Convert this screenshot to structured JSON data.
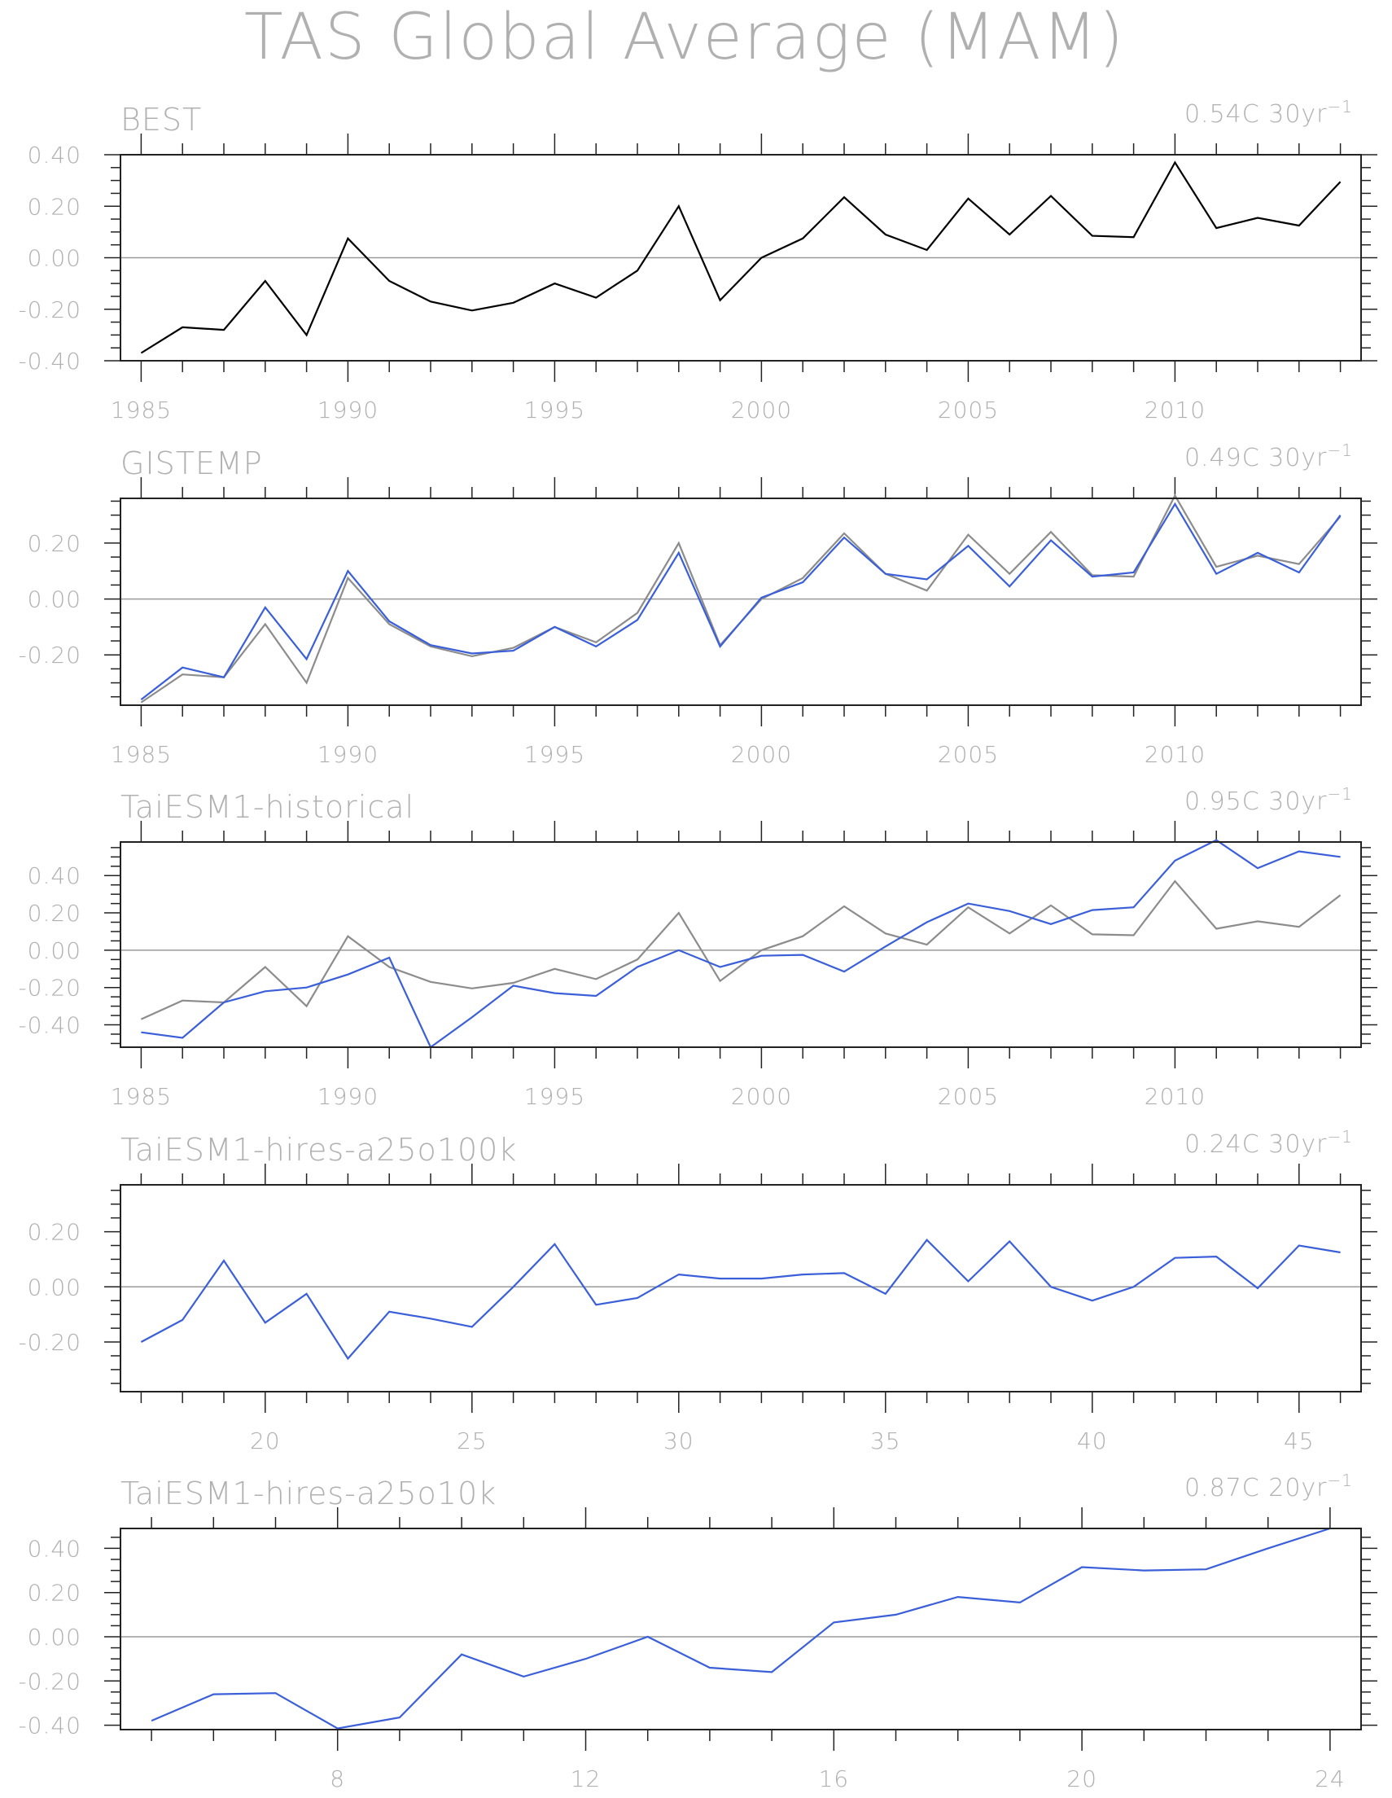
{
  "figure_title": "TAS Global Average (MAM)",
  "colors": {
    "reference": "#000000",
    "reference_overlay": "#8c8c8c",
    "model": "#3a5fd9",
    "zero_line": "#9a9a9a",
    "frame": "#222222",
    "text": "#b0b0b0"
  },
  "chart_data": [
    {
      "type": "line",
      "title": "BEST",
      "trend_label": "0.54C 30yr",
      "trend_exp": "−1",
      "ylim": [
        -0.4,
        0.4
      ],
      "yticks": [
        -0.4,
        -0.2,
        0.0,
        0.2,
        0.4
      ],
      "ytick_labels": [
        "-0.40",
        "-0.20",
        "0.00",
        "0.20",
        "0.40"
      ],
      "xlim": [
        1984.5,
        2014.5
      ],
      "xticks": [
        1985,
        1990,
        1995,
        2000,
        2005,
        2010
      ],
      "xtick_labels": [
        "1985",
        "1990",
        "1995",
        "2000",
        "2005",
        "2010"
      ],
      "x": [
        1985,
        1986,
        1987,
        1988,
        1989,
        1990,
        1991,
        1992,
        1993,
        1994,
        1995,
        1996,
        1997,
        1998,
        1999,
        2000,
        2001,
        2002,
        2003,
        2004,
        2005,
        2006,
        2007,
        2008,
        2009,
        2010,
        2011,
        2012,
        2013,
        2014
      ],
      "series": [
        {
          "role": "reference",
          "values": [
            -0.37,
            -0.27,
            -0.28,
            -0.09,
            -0.3,
            0.075,
            -0.09,
            -0.17,
            -0.205,
            -0.175,
            -0.1,
            -0.155,
            -0.05,
            0.2,
            -0.165,
            0.0,
            0.075,
            0.235,
            0.09,
            0.03,
            0.23,
            0.09,
            0.24,
            0.085,
            0.08,
            0.37,
            0.115,
            0.155,
            0.125,
            0.295
          ]
        }
      ]
    },
    {
      "type": "line",
      "title": "GISTEMP",
      "trend_label": "0.49C 30yr",
      "trend_exp": "−1",
      "ylim": [
        -0.38,
        0.36
      ],
      "yticks": [
        -0.2,
        0.0,
        0.2
      ],
      "ytick_labels": [
        "-0.20",
        "0.00",
        "0.20"
      ],
      "xlim": [
        1984.5,
        2014.5
      ],
      "xticks": [
        1985,
        1990,
        1995,
        2000,
        2005,
        2010
      ],
      "xtick_labels": [
        "1985",
        "1990",
        "1995",
        "2000",
        "2005",
        "2010"
      ],
      "x": [
        1985,
        1986,
        1987,
        1988,
        1989,
        1990,
        1991,
        1992,
        1993,
        1994,
        1995,
        1996,
        1997,
        1998,
        1999,
        2000,
        2001,
        2002,
        2003,
        2004,
        2005,
        2006,
        2007,
        2008,
        2009,
        2010,
        2011,
        2012,
        2013,
        2014
      ],
      "series": [
        {
          "role": "reference_overlay",
          "values": [
            -0.37,
            -0.27,
            -0.28,
            -0.09,
            -0.3,
            0.075,
            -0.09,
            -0.17,
            -0.205,
            -0.175,
            -0.1,
            -0.155,
            -0.05,
            0.2,
            -0.165,
            0.0,
            0.075,
            0.235,
            0.09,
            0.03,
            0.23,
            0.09,
            0.24,
            0.085,
            0.08,
            0.37,
            0.115,
            0.155,
            0.125,
            0.295
          ]
        },
        {
          "role": "model",
          "values": [
            -0.36,
            -0.245,
            -0.28,
            -0.03,
            -0.215,
            0.1,
            -0.08,
            -0.165,
            -0.195,
            -0.185,
            -0.1,
            -0.17,
            -0.075,
            0.165,
            -0.17,
            0.005,
            0.06,
            0.22,
            0.09,
            0.07,
            0.19,
            0.045,
            0.21,
            0.08,
            0.095,
            0.34,
            0.09,
            0.165,
            0.095,
            0.3
          ]
        }
      ]
    },
    {
      "type": "line",
      "title": "TaiESM1-historical",
      "trend_label": "0.95C 30yr",
      "trend_exp": "−1",
      "ylim": [
        -0.52,
        0.58
      ],
      "yticks": [
        -0.4,
        -0.2,
        0.0,
        0.2,
        0.4
      ],
      "ytick_labels": [
        "-0.40",
        "-0.20",
        "0.00",
        "0.20",
        "0.40"
      ],
      "xlim": [
        1984.5,
        2014.5
      ],
      "xticks": [
        1985,
        1990,
        1995,
        2000,
        2005,
        2010
      ],
      "xtick_labels": [
        "1985",
        "1990",
        "1995",
        "2000",
        "2005",
        "2010"
      ],
      "x": [
        1985,
        1986,
        1987,
        1988,
        1989,
        1990,
        1991,
        1992,
        1993,
        1994,
        1995,
        1996,
        1997,
        1998,
        1999,
        2000,
        2001,
        2002,
        2003,
        2004,
        2005,
        2006,
        2007,
        2008,
        2009,
        2010,
        2011,
        2012,
        2013,
        2014
      ],
      "series": [
        {
          "role": "reference_overlay",
          "values": [
            -0.37,
            -0.27,
            -0.28,
            -0.09,
            -0.3,
            0.075,
            -0.09,
            -0.17,
            -0.205,
            -0.175,
            -0.1,
            -0.155,
            -0.05,
            0.2,
            -0.165,
            0.0,
            0.075,
            0.235,
            0.09,
            0.03,
            0.23,
            0.09,
            0.24,
            0.085,
            0.08,
            0.37,
            0.115,
            0.155,
            0.125,
            0.295
          ]
        },
        {
          "role": "model",
          "values": [
            -0.44,
            -0.47,
            -0.28,
            -0.22,
            -0.2,
            -0.13,
            -0.04,
            -0.52,
            -0.36,
            -0.19,
            -0.23,
            -0.245,
            -0.09,
            0.0,
            -0.09,
            -0.03,
            -0.025,
            -0.115,
            0.02,
            0.15,
            0.25,
            0.21,
            0.14,
            0.215,
            0.23,
            0.48,
            0.59,
            0.44,
            0.53,
            0.5
          ]
        }
      ]
    },
    {
      "type": "line",
      "title": "TaiESM1-hires-a25o100k",
      "trend_label": "0.24C 30yr",
      "trend_exp": "−1",
      "ylim": [
        -0.38,
        0.37
      ],
      "yticks": [
        -0.2,
        0.0,
        0.2
      ],
      "ytick_labels": [
        "-0.20",
        "0.00",
        "0.20"
      ],
      "xlim": [
        16.5,
        46.5
      ],
      "xticks": [
        20,
        25,
        30,
        35,
        40,
        45
      ],
      "xtick_labels": [
        "20",
        "25",
        "30",
        "35",
        "40",
        "45"
      ],
      "x": [
        17,
        18,
        19,
        20,
        21,
        22,
        23,
        24,
        25,
        26,
        27,
        28,
        29,
        30,
        31,
        32,
        33,
        34,
        35,
        36,
        37,
        38,
        39,
        40,
        41,
        42,
        43,
        44,
        45,
        46
      ],
      "series": [
        {
          "role": "model",
          "values": [
            -0.2,
            -0.12,
            0.095,
            -0.13,
            -0.025,
            -0.26,
            -0.09,
            -0.115,
            -0.145,
            0.0,
            0.155,
            -0.065,
            -0.04,
            0.045,
            0.03,
            0.03,
            0.045,
            0.05,
            -0.025,
            0.17,
            0.02,
            0.165,
            0.0,
            -0.05,
            0.0,
            0.105,
            0.11,
            -0.005,
            0.15,
            0.125
          ]
        }
      ]
    },
    {
      "type": "line",
      "title": "TaiESM1-hires-a25o10k",
      "trend_label": "0.87C 20yr",
      "trend_exp": "−1",
      "ylim": [
        -0.42,
        0.49
      ],
      "yticks": [
        -0.4,
        -0.2,
        0.0,
        0.2,
        0.4
      ],
      "ytick_labels": [
        "-0.40",
        "-0.20",
        "0.00",
        "0.20",
        "0.40"
      ],
      "xlim": [
        4.5,
        24.5
      ],
      "xticks": [
        8,
        12,
        16,
        20,
        24
      ],
      "xtick_labels": [
        "8",
        "12",
        "16",
        "20",
        "24"
      ],
      "x": [
        5,
        6,
        7,
        8,
        9,
        10,
        11,
        12,
        13,
        14,
        15,
        16,
        17,
        18,
        19,
        20,
        21,
        22,
        23,
        24
      ],
      "series": [
        {
          "role": "model",
          "values": [
            -0.38,
            -0.26,
            -0.255,
            -0.415,
            -0.365,
            -0.08,
            -0.18,
            -0.1,
            0.0,
            -0.14,
            -0.16,
            0.065,
            0.1,
            0.18,
            0.155,
            0.315,
            0.3,
            0.305,
            0.4,
            0.49
          ]
        }
      ]
    }
  ]
}
